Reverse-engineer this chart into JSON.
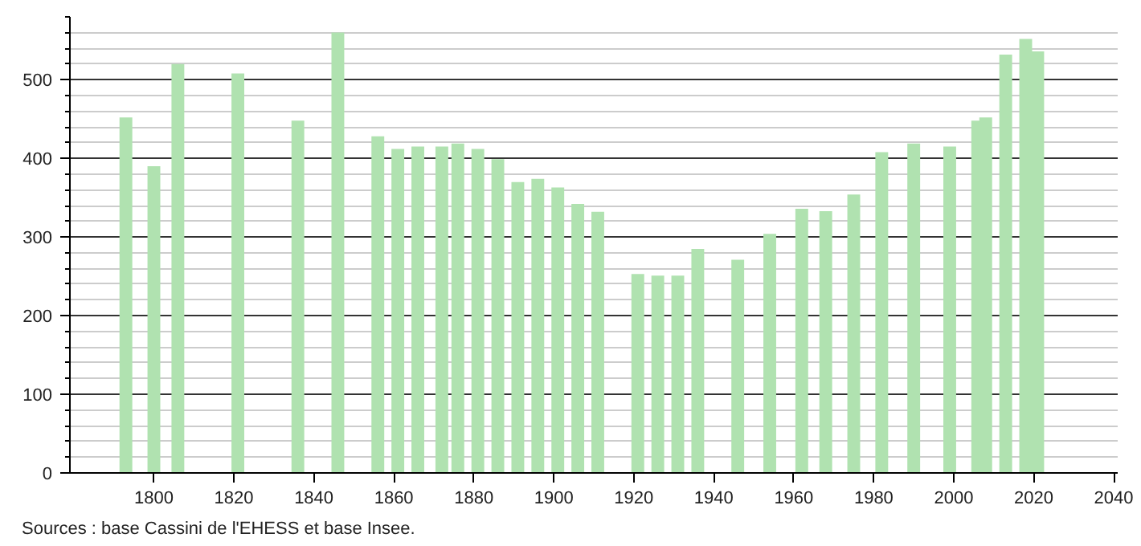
{
  "chart_data": {
    "type": "bar",
    "x": [
      1793,
      1800,
      1806,
      1821,
      1836,
      1846,
      1856,
      1861,
      1866,
      1872,
      1876,
      1881,
      1886,
      1891,
      1896,
      1901,
      1906,
      1911,
      1921,
      1926,
      1931,
      1936,
      1946,
      1954,
      1962,
      1968,
      1975,
      1982,
      1990,
      1999,
      2006,
      2008,
      2013,
      2018,
      2021
    ],
    "values": [
      452,
      390,
      520,
      508,
      448,
      560,
      428,
      412,
      415,
      415,
      419,
      412,
      399,
      370,
      374,
      363,
      342,
      332,
      253,
      251,
      251,
      285,
      271,
      304,
      336,
      333,
      354,
      408,
      419,
      415,
      448,
      452,
      532,
      552,
      536
    ],
    "color": "#b0e2b0",
    "xlim": [
      1779,
      2041
    ],
    "xticks": [
      1800,
      1820,
      1840,
      1860,
      1880,
      1900,
      1920,
      1940,
      1960,
      1980,
      2000,
      2020,
      2040
    ],
    "ylim": [
      0,
      580
    ],
    "yticks": [
      0,
      {
        "value": 20,
        "label": null
      },
      {
        "value": 40,
        "label": null
      },
      {
        "value": 60,
        "label": null
      },
      {
        "value": 80,
        "label": null
      },
      100,
      {
        "value": 120,
        "label": null
      },
      {
        "value": 140,
        "label": null
      },
      {
        "value": 160,
        "label": null
      },
      {
        "value": 180,
        "label": null
      },
      200,
      {
        "value": 220,
        "label": null
      },
      {
        "value": 240,
        "label": null
      },
      {
        "value": 260,
        "label": null
      },
      {
        "value": 280,
        "label": null
      },
      300,
      {
        "value": 320,
        "label": null
      },
      {
        "value": 340,
        "label": null
      },
      {
        "value": 360,
        "label": null
      },
      {
        "value": 380,
        "label": null
      },
      400,
      {
        "value": 420,
        "label": null
      },
      {
        "value": 440,
        "label": null
      },
      {
        "value": 460,
        "label": null
      },
      {
        "value": 480,
        "label": null
      },
      500,
      {
        "value": 520,
        "label": null
      },
      {
        "value": 540,
        "label": null
      },
      {
        "value": 560,
        "label": null
      },
      {
        "value": 580,
        "label": null
      }
    ],
    "grid": "y",
    "annotations": [
      "Sources : base Cassini de l'EHESS et base Insee."
    ]
  }
}
